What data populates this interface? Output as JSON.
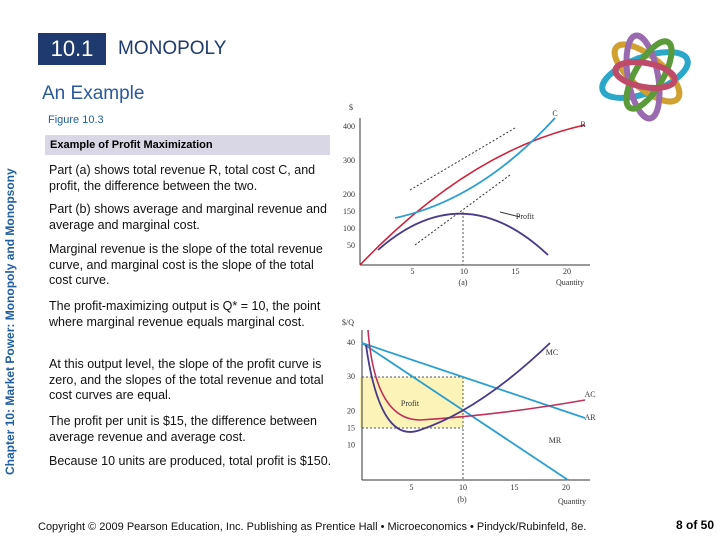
{
  "header": {
    "section": "10.1",
    "title": "MONOPOLY",
    "subtitle": "An Example"
  },
  "sidebar": "Chapter 10: Market Power: Monopoly and Monopsony",
  "figure": {
    "label": "Figure 10.3",
    "box_title": "Example of Profit Maximization",
    "bullets": [
      "Part (a) shows total revenue R, total cost C, and profit, the difference between the two.",
      "Part (b) shows average and marginal revenue and average and marginal cost.",
      "Marginal revenue is the slope of the total revenue curve, and marginal cost is the slope of the total cost curve.",
      "The profit-maximizing output is Q* = 10, the point where marginal revenue equals marginal cost.",
      "At this output level, the slope of the profit curve is zero, and the slopes of the total revenue and total cost curves are equal.",
      "The profit per unit is $15, the difference between average revenue and average cost.",
      "Because 10 units are produced, total profit is $150."
    ]
  },
  "panel_a": {
    "y_label": "$",
    "x_label": "Quantity",
    "caption": "(a)",
    "yticks": [
      400,
      300,
      200,
      150,
      100,
      50
    ],
    "xticks": [
      5,
      10,
      15,
      20
    ],
    "curve_labels": [
      "C",
      "R",
      "Profit"
    ]
  },
  "panel_b": {
    "y_label": "$/Q",
    "x_label": "Quantity",
    "caption": "(b)",
    "yticks": [
      40,
      30,
      20,
      15,
      10
    ],
    "xticks": [
      5,
      10,
      15,
      20
    ],
    "curve_labels": [
      "MC",
      "AC",
      "AR",
      "MR"
    ],
    "area_label": "Profit"
  },
  "footer": {
    "copyright": "Copyright © 2009 Pearson Education, Inc. Publishing as Prentice Hall • Microeconomics • Pindyck/Rubinfeld, 8e.",
    "page": "8 of 50"
  }
}
